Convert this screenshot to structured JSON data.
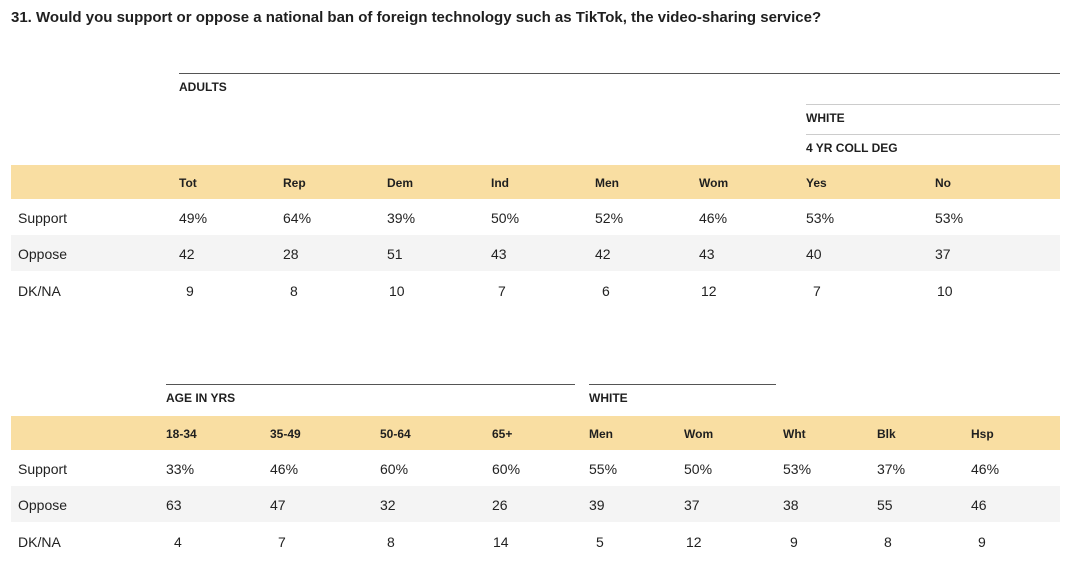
{
  "question": "31. Would you support or oppose a national ban of foreign technology such as TikTok, the video-sharing service?",
  "table1": {
    "group_adults": "ADULTS",
    "group_white": "WHITE",
    "group_coll": "4 YR COLL DEG",
    "columns": [
      "Tot",
      "Rep",
      "Dem",
      "Ind",
      "Men",
      "Wom",
      "Yes",
      "No"
    ],
    "rows": [
      {
        "label": "Support",
        "values": [
          "49%",
          "64%",
          "39%",
          "50%",
          "52%",
          "46%",
          "53%",
          "53%"
        ]
      },
      {
        "label": "Oppose",
        "values": [
          "42",
          "28",
          "51",
          "43",
          "42",
          "43",
          "40",
          "37"
        ]
      },
      {
        "label": "DK/NA",
        "values": [
          "9",
          "8",
          "10",
          "7",
          "6",
          "12",
          "7",
          "10"
        ]
      }
    ]
  },
  "table2": {
    "group_age": "AGE IN YRS",
    "group_white": "WHITE",
    "columns": [
      "18-34",
      "35-49",
      "50-64",
      "65+",
      "Men",
      "Wom",
      "Wht",
      "Blk",
      "Hsp"
    ],
    "rows": [
      {
        "label": "Support",
        "values": [
          "33%",
          "46%",
          "60%",
          "60%",
          "55%",
          "50%",
          "53%",
          "37%",
          "46%"
        ]
      },
      {
        "label": "Oppose",
        "values": [
          "63",
          "47",
          "32",
          "26",
          "39",
          "37",
          "38",
          "55",
          "46"
        ]
      },
      {
        "label": "DK/NA",
        "values": [
          "4",
          "7",
          "8",
          "14",
          "5",
          "12",
          "9",
          "8",
          "9"
        ]
      }
    ]
  }
}
